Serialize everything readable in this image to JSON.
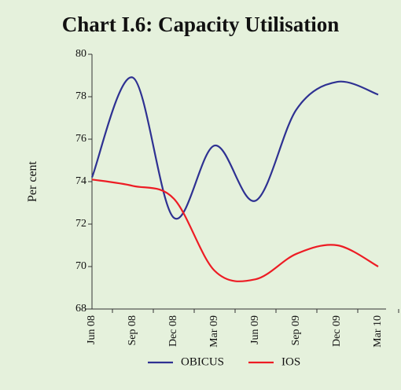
{
  "chart_data": {
    "type": "line",
    "title": "Chart I.6: Capacity Utilisation",
    "y_label": "Per cent",
    "categories": [
      "Jun 08",
      "Sep 08",
      "Dec 08",
      "Mar 09",
      "Jun 09",
      "Sep 09",
      "Dec 09",
      "Mar 10"
    ],
    "series": [
      {
        "name": "OBICUS",
        "color": "#2e3192",
        "values": [
          74.2,
          78.9,
          72.3,
          75.7,
          73.1,
          77.4,
          78.7,
          78.1
        ]
      },
      {
        "name": "IOS",
        "color": "#ed1c24",
        "values": [
          74.1,
          73.8,
          73.2,
          69.8,
          69.4,
          70.6,
          71.0,
          70.0
        ]
      }
    ],
    "ylim": [
      68,
      80
    ],
    "yticks": [
      68,
      70,
      72,
      74,
      76,
      78,
      80
    ],
    "smooth": true,
    "legend": "bottom"
  }
}
